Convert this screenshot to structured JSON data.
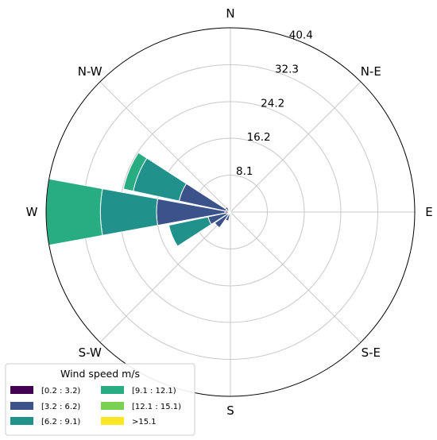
{
  "chart_data": {
    "type": "windrose",
    "rings": [
      8.1,
      16.2,
      24.2,
      32.3,
      40.4
    ],
    "rmax": 40.4,
    "directions": [
      {
        "key": "N",
        "label": "N",
        "angle": 0
      },
      {
        "key": "NE",
        "label": "N-E",
        "angle": 45
      },
      {
        "key": "E",
        "label": "E",
        "angle": 90
      },
      {
        "key": "SE",
        "label": "S-E",
        "angle": 135
      },
      {
        "key": "S",
        "label": "S",
        "angle": 180
      },
      {
        "key": "SW",
        "label": "S-W",
        "angle": 225
      },
      {
        "key": "W",
        "label": "W",
        "angle": 270
      },
      {
        "key": "NW",
        "label": "N-W",
        "angle": 315
      }
    ],
    "sector_width_deg": 22.5,
    "sectors": [
      {
        "direction": 270.0,
        "stack": [
          1.2,
          16.2,
          28.5,
          40.4
        ]
      },
      {
        "direction": 292.5,
        "stack": [
          1.0,
          11.5,
          21.8,
          24.0
        ]
      },
      {
        "direction": 247.5,
        "stack": [
          0.8,
          5.0,
          13.8
        ]
      },
      {
        "direction": 225.0,
        "stack": [
          0.7,
          4.2
        ]
      },
      {
        "direction": 202.5,
        "stack": [
          0.5,
          2.0
        ]
      },
      {
        "direction": 315.0,
        "stack": [
          0.5,
          1.4
        ]
      },
      {
        "direction": 337.5,
        "stack": [
          0.4
        ]
      },
      {
        "direction": 180.0,
        "stack": [
          0.4
        ]
      },
      {
        "direction": 157.5,
        "stack": [
          0.3
        ]
      },
      {
        "direction": 0.0,
        "stack": [
          0.2
        ]
      }
    ],
    "legend": {
      "title": "Wind speed m/s",
      "position": "lower-left",
      "items": [
        {
          "label": "[0.2 : 3.2)",
          "color": "#440154"
        },
        {
          "label": "[3.2 : 6.2)",
          "color": "#3b528b"
        },
        {
          "label": "[6.2 : 9.1)",
          "color": "#21918c"
        },
        {
          "label": "[9.1 : 12.1)",
          "color": "#27ad81"
        },
        {
          "label": "[12.1 : 15.1)",
          "color": "#7ad151"
        },
        {
          "label": ">15.1",
          "color": "#fde725"
        }
      ]
    }
  }
}
